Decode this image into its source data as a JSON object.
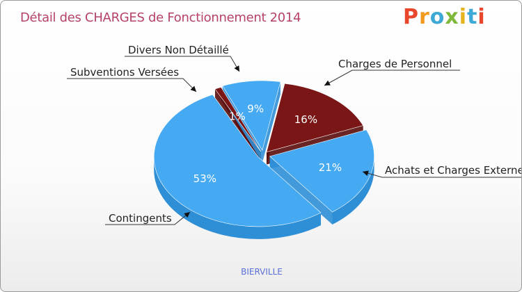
{
  "title": "Détail des CHARGES de Fonctionnement 2014",
  "logo": [
    "P",
    "r",
    "o",
    "x",
    "i",
    "t",
    "i"
  ],
  "commune": "BIERVILLE",
  "colors": {
    "title": "#b5416a",
    "blue_top": "#45aaf2",
    "blue_side": "#2f8fd6",
    "red_top": "#7a1616",
    "red_side": "#5a0c0c",
    "text_on_blue": "#ffffff",
    "callout": "#333333"
  },
  "chart_data": {
    "type": "pie",
    "title": "Détail des CHARGES de Fonctionnement 2014",
    "slices": [
      {
        "label": "Charges de Personnel",
        "value": 16,
        "pct_label": "16%",
        "color": "red"
      },
      {
        "label": "Achats et Charges Externes",
        "value": 21,
        "pct_label": "21%",
        "color": "blue"
      },
      {
        "label": "Contingents",
        "value": 53,
        "pct_label": "53%",
        "color": "blue"
      },
      {
        "label": "Subventions Versées",
        "value": 1,
        "pct_label": "1%",
        "color": "red"
      },
      {
        "label": "Divers Non Détaillé",
        "value": 9,
        "pct_label": "9%",
        "color": "blue"
      }
    ],
    "legend": "none (callout labels)"
  }
}
